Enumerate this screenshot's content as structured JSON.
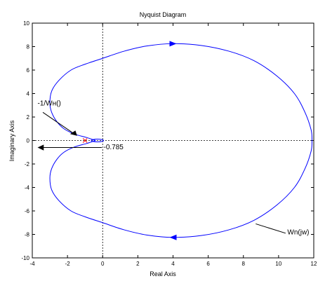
{
  "chart_data": {
    "type": "line",
    "title": "Nyquist Diagram",
    "xlabel": "Real Axis",
    "ylabel": "Imaginary Axis",
    "xlim": [
      -4,
      12
    ],
    "ylim": [
      -10,
      10
    ],
    "xticks": [
      -4,
      -2,
      0,
      2,
      4,
      6,
      8,
      10,
      12
    ],
    "yticks": [
      -10,
      -8,
      -6,
      -4,
      -2,
      0,
      2,
      4,
      6,
      8,
      10
    ],
    "grid": false,
    "legend": "none",
    "colors": {
      "curve": "#0000ff",
      "axes": "#000000",
      "marker": "#ff0000"
    },
    "series": [
      {
        "name": "Wn(jw)",
        "x": [
          -0.4,
          -0.9,
          -1.6,
          -2.2,
          -2.6,
          -2.9,
          -3.0,
          -2.9,
          -2.5,
          -1.8,
          -1.0,
          0.0,
          1.2,
          2.5,
          4.0,
          5.6,
          7.2,
          8.6,
          9.9,
          10.9,
          11.5,
          11.85,
          11.9
        ],
        "y": [
          0.0,
          0.25,
          0.55,
          1.0,
          1.6,
          2.4,
          3.2,
          4.2,
          5.1,
          6.0,
          6.5,
          7.0,
          7.6,
          8.05,
          8.25,
          8.1,
          7.6,
          6.8,
          5.5,
          4.0,
          2.4,
          0.9,
          0.0
        ]
      }
    ],
    "small_loop": {
      "center": [
        -0.3,
        0.0
      ],
      "rx": 0.35,
      "ry": 0.12
    },
    "critical_point": [
      -1,
      0
    ],
    "annotations": [
      {
        "text": "-1/Wн()",
        "x": -3.7,
        "y": 3.0
      },
      {
        "text": "-0.785",
        "x": 0.05,
        "y": -0.75
      },
      {
        "text": "Wn(jw)",
        "x": 10.5,
        "y": -8.0
      },
      {
        "text": "x",
        "x": -1.0,
        "y": 0.0
      }
    ]
  }
}
